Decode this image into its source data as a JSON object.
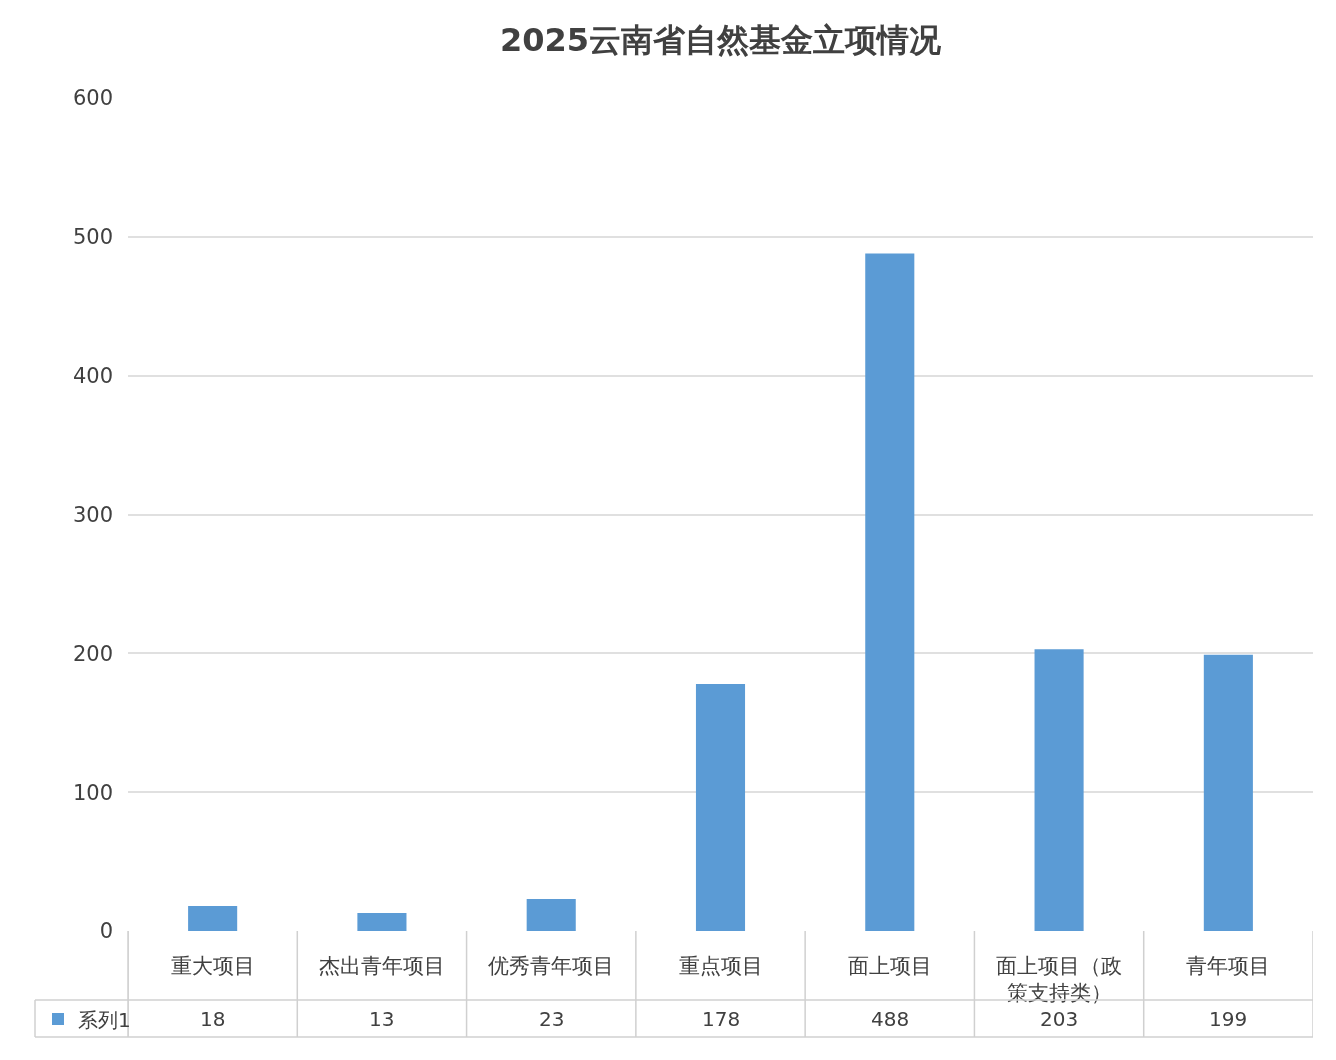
{
  "chart_data": {
    "type": "bar",
    "title": "2025云南省自然基金立项情况",
    "categories": [
      "重大项目",
      "杰出青年项目",
      "优秀青年项目",
      "重点项目",
      "面上项目",
      "面上项目（政策支持类）",
      "青年项目"
    ],
    "series": [
      {
        "name": "系列1",
        "color": "#5b9bd5",
        "values": [
          18,
          13,
          23,
          178,
          488,
          203,
          199
        ]
      }
    ],
    "ylim": [
      0,
      600
    ],
    "yticks": [
      0,
      100,
      200,
      300,
      400,
      500,
      600
    ],
    "grid": "y",
    "legend": "bottom left",
    "data_labels": true
  }
}
